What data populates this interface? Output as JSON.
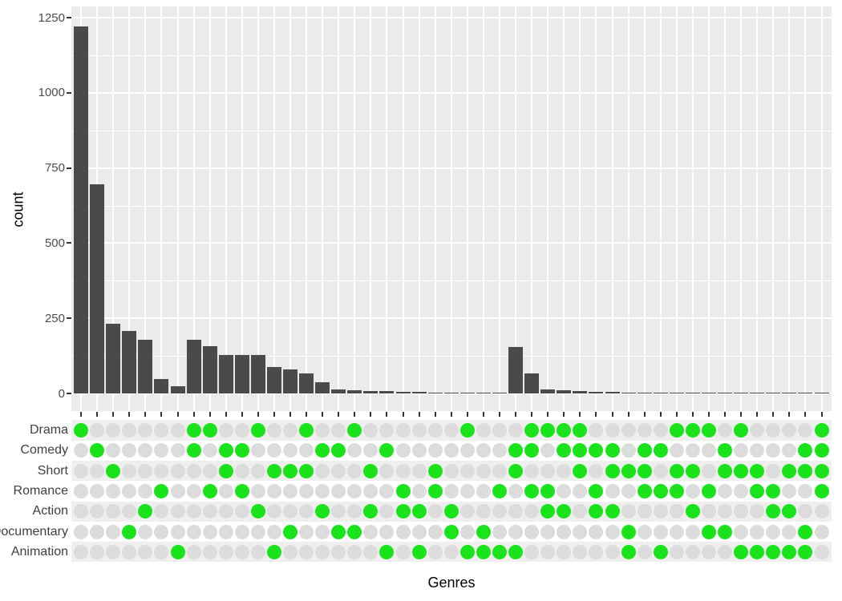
{
  "chart_data": {
    "type": "upset",
    "title": "",
    "xlabel": "Genres",
    "ylabel": "count",
    "ylim": [
      0,
      1250
    ],
    "y_ticks": [
      0,
      250,
      500,
      750,
      1000,
      1250
    ],
    "y_minor_ticks": [
      125,
      375,
      625,
      875,
      1125
    ],
    "grid": "on",
    "genres": [
      "Drama",
      "Comedy",
      "Short",
      "Romance",
      "Action",
      "Documentary",
      "Animation"
    ],
    "intersections": [
      {
        "sets": [
          "Drama"
        ],
        "count": 1220
      },
      {
        "sets": [
          "Comedy"
        ],
        "count": 695
      },
      {
        "sets": [
          "Short"
        ],
        "count": 232
      },
      {
        "sets": [
          "Documentary"
        ],
        "count": 208
      },
      {
        "sets": [
          "Action"
        ],
        "count": 178
      },
      {
        "sets": [
          "Romance"
        ],
        "count": 47
      },
      {
        "sets": [
          "Animation"
        ],
        "count": 24
      },
      {
        "sets": [
          "Drama",
          "Comedy"
        ],
        "count": 178
      },
      {
        "sets": [
          "Drama",
          "Romance"
        ],
        "count": 157
      },
      {
        "sets": [
          "Comedy",
          "Short"
        ],
        "count": 129
      },
      {
        "sets": [
          "Comedy",
          "Romance"
        ],
        "count": 128
      },
      {
        "sets": [
          "Drama",
          "Action"
        ],
        "count": 127
      },
      {
        "sets": [
          "Short",
          "Animation"
        ],
        "count": 88
      },
      {
        "sets": [
          "Short",
          "Documentary"
        ],
        "count": 80
      },
      {
        "sets": [
          "Drama",
          "Short"
        ],
        "count": 67
      },
      {
        "sets": [
          "Comedy",
          "Action"
        ],
        "count": 37
      },
      {
        "sets": [
          "Comedy",
          "Documentary"
        ],
        "count": 12
      },
      {
        "sets": [
          "Drama",
          "Documentary"
        ],
        "count": 11
      },
      {
        "sets": [
          "Short",
          "Action"
        ],
        "count": 9
      },
      {
        "sets": [
          "Comedy",
          "Animation"
        ],
        "count": 8
      },
      {
        "sets": [
          "Romance",
          "Action"
        ],
        "count": 6
      },
      {
        "sets": [
          "Action",
          "Animation"
        ],
        "count": 4
      },
      {
        "sets": [
          "Short",
          "Romance"
        ],
        "count": 3
      },
      {
        "sets": [
          "Action",
          "Documentary"
        ],
        "count": 3
      },
      {
        "sets": [
          "Drama",
          "Animation"
        ],
        "count": 2
      },
      {
        "sets": [
          "Documentary",
          "Animation"
        ],
        "count": 2
      },
      {
        "sets": [
          "Romance",
          "Animation"
        ],
        "count": 2
      },
      {
        "sets": [
          "Comedy",
          "Short",
          "Animation"
        ],
        "count": 155
      },
      {
        "sets": [
          "Drama",
          "Comedy",
          "Romance"
        ],
        "count": 67
      },
      {
        "sets": [
          "Drama",
          "Romance",
          "Action"
        ],
        "count": 13
      },
      {
        "sets": [
          "Drama",
          "Comedy",
          "Action"
        ],
        "count": 10
      },
      {
        "sets": [
          "Drama",
          "Comedy",
          "Short"
        ],
        "count": 8
      },
      {
        "sets": [
          "Comedy",
          "Romance",
          "Action"
        ],
        "count": 5
      },
      {
        "sets": [
          "Comedy",
          "Short",
          "Action"
        ],
        "count": 4
      },
      {
        "sets": [
          "Short",
          "Documentary",
          "Animation"
        ],
        "count": 3
      },
      {
        "sets": [
          "Comedy",
          "Short",
          "Romance"
        ],
        "count": 3
      },
      {
        "sets": [
          "Comedy",
          "Romance",
          "Animation"
        ],
        "count": 2
      },
      {
        "sets": [
          "Drama",
          "Short",
          "Romance"
        ],
        "count": 2
      },
      {
        "sets": [
          "Drama",
          "Short",
          "Action"
        ],
        "count": 2
      },
      {
        "sets": [
          "Drama",
          "Romance",
          "Documentary"
        ],
        "count": 1
      },
      {
        "sets": [
          "Comedy",
          "Short",
          "Documentary"
        ],
        "count": 1
      },
      {
        "sets": [
          "Drama",
          "Short",
          "Animation"
        ],
        "count": 1
      },
      {
        "sets": [
          "Short",
          "Romance",
          "Animation"
        ],
        "count": 1
      },
      {
        "sets": [
          "Romance",
          "Action",
          "Animation"
        ],
        "count": 1
      },
      {
        "sets": [
          "Short",
          "Action",
          "Animation"
        ],
        "count": 1
      },
      {
        "sets": [
          "Comedy",
          "Short",
          "Documentary",
          "Animation"
        ],
        "count": 2
      },
      {
        "sets": [
          "Drama",
          "Comedy",
          "Short",
          "Romance"
        ],
        "count": 2
      }
    ]
  },
  "colors": {
    "bar": "#4a4a4a",
    "panel_bg": "#ebebeb",
    "grid": "#ffffff",
    "stripe_odd": "#efefef",
    "stripe_even": "#ffffff",
    "dot_inactive": "#dcdcdc",
    "dot_active": "#1be31b",
    "tick": "#333333",
    "axis_text": "#4d4d4d"
  }
}
